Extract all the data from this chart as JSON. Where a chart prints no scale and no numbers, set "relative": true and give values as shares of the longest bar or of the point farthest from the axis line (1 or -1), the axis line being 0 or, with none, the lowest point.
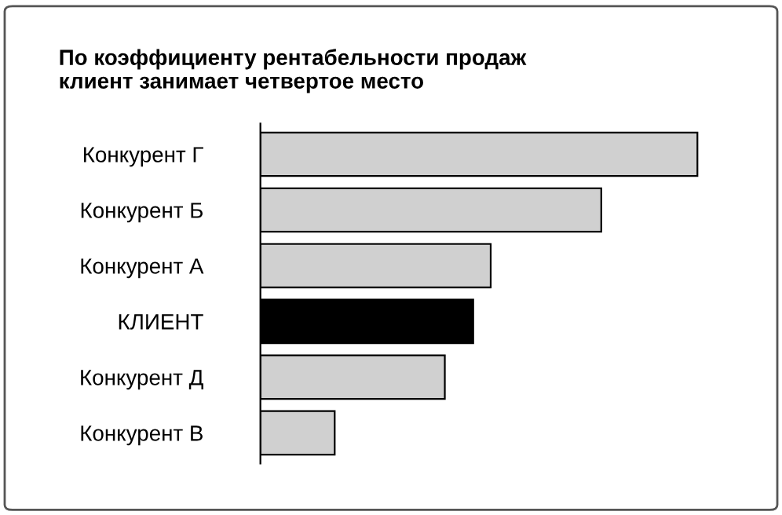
{
  "chart_data": {
    "type": "bar",
    "orientation": "horizontal",
    "relative": true,
    "title": "По коэффициенту рентабельности продаж\nклиент занимает четвертое место",
    "categories": [
      "Конкурент Г",
      "Конкурент Б",
      "Конкурент А",
      "КЛИЕНТ",
      "Конкурент Д",
      "Конкурент В"
    ],
    "values": [
      1,
      0.78,
      0.527,
      0.487,
      0.422,
      0.17
    ],
    "colors": [
      "#d0d0d0",
      "#d0d0d0",
      "#d0d0d0",
      "#000000",
      "#d0d0d0",
      "#d0d0d0"
    ],
    "grid": false,
    "legend": false
  }
}
